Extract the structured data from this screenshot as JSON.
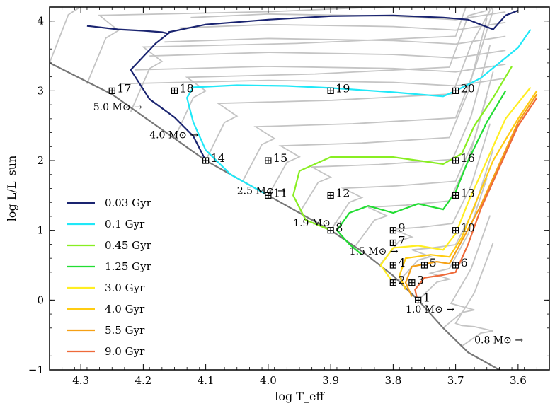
{
  "chart_data": {
    "type": "line",
    "title": "",
    "xlabel": "log T_eff",
    "ylabel": "log L/L_sun",
    "xlim": [
      4.35,
      3.55
    ],
    "ylim": [
      -1,
      4.2
    ],
    "xticks": [
      4.3,
      4.2,
      4.1,
      4.0,
      3.9,
      3.8,
      3.7,
      3.6
    ],
    "xtick_labels": [
      "4.3",
      "4.2",
      "4.1",
      "4.0",
      "3.9",
      "3.8",
      "3.7",
      "3.6"
    ],
    "yticks": [
      -1,
      0,
      1,
      2,
      3,
      4
    ],
    "ytick_labels": [
      "−1",
      "0",
      "1",
      "2",
      "3",
      "4"
    ],
    "legend_position": "lower-left",
    "isochrones": [
      {
        "name": "0.03 Gyr",
        "color": "#1a2470",
        "points": [
          [
            4.29,
            3.93
          ],
          [
            4.24,
            3.88
          ],
          [
            4.2,
            3.86
          ],
          [
            4.17,
            3.84
          ],
          [
            4.16,
            3.82
          ],
          [
            4.18,
            3.68
          ],
          [
            4.22,
            3.3
          ],
          [
            4.19,
            2.88
          ],
          [
            4.15,
            2.62
          ],
          [
            4.12,
            2.35
          ],
          [
            4.1,
            2.0
          ]
        ],
        "upper": [
          [
            4.16,
            3.84
          ],
          [
            4.1,
            3.95
          ],
          [
            4.0,
            4.02
          ],
          [
            3.9,
            4.07
          ],
          [
            3.8,
            4.08
          ],
          [
            3.72,
            4.05
          ],
          [
            3.68,
            4.02
          ],
          [
            3.66,
            3.95
          ],
          [
            3.64,
            3.88
          ],
          [
            3.62,
            4.08
          ],
          [
            3.6,
            4.15
          ]
        ]
      },
      {
        "name": "0.1 Gyr",
        "color": "#20e8f8",
        "points": [
          [
            4.0,
            1.5
          ],
          [
            4.06,
            1.8
          ],
          [
            4.1,
            2.15
          ],
          [
            4.12,
            2.55
          ],
          [
            4.13,
            2.9
          ],
          [
            4.12,
            3.05
          ],
          [
            4.05,
            3.08
          ],
          [
            3.97,
            3.07
          ],
          [
            3.9,
            3.04
          ],
          [
            3.8,
            2.98
          ],
          [
            3.72,
            2.92
          ],
          [
            3.7,
            3.0
          ],
          [
            3.66,
            3.18
          ],
          [
            3.63,
            3.4
          ],
          [
            3.6,
            3.62
          ],
          [
            3.58,
            3.88
          ]
        ]
      },
      {
        "name": "0.45 Gyr",
        "color": "#88ee22",
        "points": [
          [
            3.9,
            1.0
          ],
          [
            3.94,
            1.15
          ],
          [
            3.96,
            1.5
          ],
          [
            3.95,
            1.85
          ],
          [
            3.9,
            2.05
          ],
          [
            3.8,
            2.05
          ],
          [
            3.72,
            1.95
          ],
          [
            3.69,
            2.1
          ],
          [
            3.67,
            2.5
          ],
          [
            3.64,
            2.9
          ],
          [
            3.61,
            3.35
          ]
        ]
      },
      {
        "name": "1.25 Gyr",
        "color": "#22dd33",
        "points": [
          [
            3.85,
            0.65
          ],
          [
            3.87,
            0.8
          ],
          [
            3.89,
            1.0
          ],
          [
            3.87,
            1.25
          ],
          [
            3.84,
            1.35
          ],
          [
            3.8,
            1.25
          ],
          [
            3.76,
            1.38
          ],
          [
            3.72,
            1.3
          ],
          [
            3.7,
            1.55
          ],
          [
            3.68,
            2.0
          ],
          [
            3.65,
            2.55
          ],
          [
            3.62,
            3.0
          ]
        ]
      },
      {
        "name": "3.0 Gyr",
        "color": "#ffee22",
        "points": [
          [
            3.8,
            0.25
          ],
          [
            3.82,
            0.5
          ],
          [
            3.8,
            0.75
          ],
          [
            3.76,
            0.78
          ],
          [
            3.72,
            0.72
          ],
          [
            3.7,
            0.95
          ],
          [
            3.68,
            1.4
          ],
          [
            3.65,
            2.0
          ],
          [
            3.62,
            2.6
          ],
          [
            3.58,
            3.05
          ]
        ]
      },
      {
        "name": "4.0 Gyr",
        "color": "#ffcc11",
        "points": [
          [
            3.78,
            0.15
          ],
          [
            3.79,
            0.35
          ],
          [
            3.78,
            0.6
          ],
          [
            3.74,
            0.65
          ],
          [
            3.71,
            0.62
          ],
          [
            3.69,
            0.9
          ],
          [
            3.67,
            1.35
          ],
          [
            3.64,
            2.0
          ],
          [
            3.6,
            2.6
          ],
          [
            3.57,
            3.0
          ]
        ]
      },
      {
        "name": "5.5 Gyr",
        "color": "#f5a015",
        "points": [
          [
            3.77,
            0.05
          ],
          [
            3.78,
            0.25
          ],
          [
            3.77,
            0.48
          ],
          [
            3.73,
            0.55
          ],
          [
            3.71,
            0.52
          ],
          [
            3.69,
            0.85
          ],
          [
            3.66,
            1.35
          ],
          [
            3.63,
            1.95
          ],
          [
            3.6,
            2.55
          ],
          [
            3.57,
            2.95
          ]
        ]
      },
      {
        "name": "9.0 Gyr",
        "color": "#ee6a3a",
        "points": [
          [
            3.76,
            -0.05
          ],
          [
            3.765,
            0.15
          ],
          [
            3.75,
            0.32
          ],
          [
            3.72,
            0.36
          ],
          [
            3.7,
            0.4
          ],
          [
            3.68,
            0.8
          ],
          [
            3.66,
            1.3
          ],
          [
            3.63,
            1.9
          ],
          [
            3.6,
            2.5
          ],
          [
            3.57,
            2.9
          ]
        ]
      }
    ],
    "zams": [
      [
        4.35,
        3.4
      ],
      [
        4.25,
        2.95
      ],
      [
        4.1,
        2.0
      ],
      [
        4.0,
        1.5
      ],
      [
        3.9,
        1.0
      ],
      [
        3.85,
        0.7
      ],
      [
        3.8,
        0.35
      ],
      [
        3.76,
        0.0
      ],
      [
        3.72,
        -0.4
      ],
      [
        3.68,
        -0.75
      ],
      [
        3.63,
        -1.0
      ]
    ],
    "stars": [
      {
        "id": "1",
        "logT": 3.76,
        "logL": 0.0
      },
      {
        "id": "2",
        "logT": 3.8,
        "logL": 0.25
      },
      {
        "id": "3",
        "logT": 3.77,
        "logL": 0.25
      },
      {
        "id": "4",
        "logT": 3.8,
        "logL": 0.5
      },
      {
        "id": "5",
        "logT": 3.75,
        "logL": 0.5
      },
      {
        "id": "6",
        "logT": 3.7,
        "logL": 0.5
      },
      {
        "id": "7",
        "logT": 3.8,
        "logL": 0.82
      },
      {
        "id": "8",
        "logT": 3.9,
        "logL": 1.0
      },
      {
        "id": "9",
        "logT": 3.8,
        "logL": 1.0
      },
      {
        "id": "10",
        "logT": 3.7,
        "logL": 1.0
      },
      {
        "id": "11",
        "logT": 4.0,
        "logL": 1.5
      },
      {
        "id": "12",
        "logT": 3.9,
        "logL": 1.5
      },
      {
        "id": "13",
        "logT": 3.7,
        "logL": 1.5
      },
      {
        "id": "14",
        "logT": 4.1,
        "logL": 2.0
      },
      {
        "id": "15",
        "logT": 4.0,
        "logL": 2.0
      },
      {
        "id": "16",
        "logT": 3.7,
        "logL": 2.0
      },
      {
        "id": "17",
        "logT": 4.25,
        "logL": 3.0
      },
      {
        "id": "18",
        "logT": 4.15,
        "logL": 3.0
      },
      {
        "id": "19",
        "logT": 3.9,
        "logL": 3.0
      },
      {
        "id": "20",
        "logT": 3.7,
        "logL": 3.0
      }
    ],
    "mass_annotations": [
      {
        "text": "5.0 M⊙ →",
        "logT": 4.28,
        "logL": 2.72
      },
      {
        "text": "4.0 M⊙ →",
        "logT": 4.19,
        "logL": 2.32
      },
      {
        "text": "2.5 M⊙ →",
        "logT": 4.05,
        "logL": 1.52
      },
      {
        "text": "1.9 M⊙ →",
        "logT": 3.96,
        "logL": 1.06
      },
      {
        "text": "1.5 M⊙ →",
        "logT": 3.87,
        "logL": 0.65
      },
      {
        "text": "1.0 M⊙ →",
        "logT": 3.78,
        "logL": -0.18
      },
      {
        "text": "0.8 M⊙ →",
        "logT": 3.67,
        "logL": -0.62
      }
    ]
  }
}
